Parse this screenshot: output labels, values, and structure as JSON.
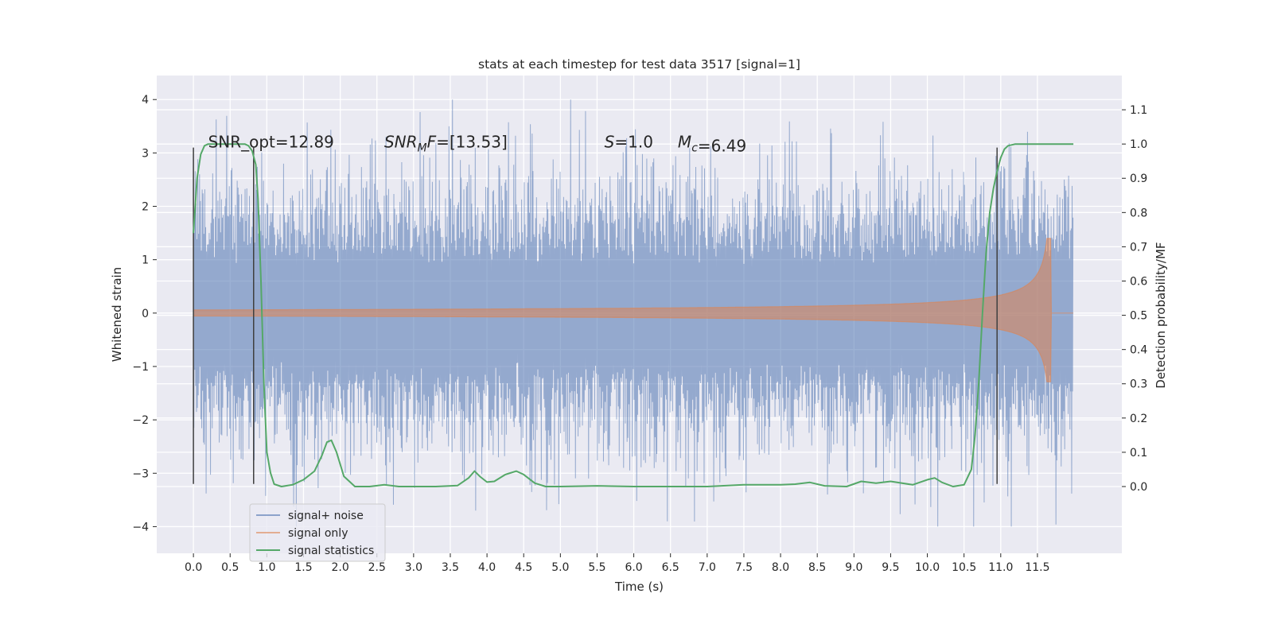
{
  "chart_data": {
    "type": "line",
    "title": "stats at each timestep for test data 3517 [signal=1]",
    "xlabel": "Time (s)",
    "ylabel": "Whitened strain",
    "y2label": "Detection probability/MF",
    "xlim": [
      -0.5,
      12.65
    ],
    "ylim": [
      -4.5,
      4.45
    ],
    "y2lim": [
      -0.195,
      1.2
    ],
    "xticks": [
      0.0,
      0.5,
      1.0,
      1.5,
      2.0,
      2.5,
      3.0,
      3.5,
      4.0,
      4.5,
      5.0,
      5.5,
      6.0,
      6.5,
      7.0,
      7.5,
      8.0,
      8.5,
      9.0,
      9.5,
      10.0,
      10.5,
      11.0,
      11.5
    ],
    "xtick_labels": [
      "0.0",
      "0.5",
      "1.0",
      "1.5",
      "2.0",
      "2.5",
      "3.0",
      "3.5",
      "4.0",
      "4.5",
      "5.0",
      "5.5",
      "6.0",
      "6.5",
      "7.0",
      "7.5",
      "8.0",
      "8.5",
      "9.0",
      "9.5",
      "10.0",
      "10.5",
      "11.0",
      "11.5"
    ],
    "yticks": [
      -4,
      -3,
      -2,
      -1,
      0,
      1,
      2,
      3,
      4
    ],
    "ytick_labels": [
      "−4",
      "−3",
      "−2",
      "−1",
      "0",
      "1",
      "2",
      "3",
      "4"
    ],
    "y2ticks": [
      0.0,
      0.1,
      0.2,
      0.3,
      0.4,
      0.5,
      0.6,
      0.7,
      0.8,
      0.9,
      1.0,
      1.1
    ],
    "y2tick_labels": [
      "0.0",
      "0.1",
      "0.2",
      "0.3",
      "0.4",
      "0.5",
      "0.6",
      "0.7",
      "0.8",
      "0.9",
      "1.0",
      "1.1"
    ],
    "grid": true,
    "legend_position": "lower-left",
    "annotations": [
      {
        "prefix": "SNR_opt",
        "text": "=12.89",
        "x": 0.2
      },
      {
        "prefix": "SNR",
        "sub": "M",
        "suffix": "F",
        "text": "=[13.53]",
        "x": 2.6
      },
      {
        "prefix": "S",
        "text": "=1.0",
        "x": 5.6
      },
      {
        "prefix": "M",
        "sub": "c",
        "text": "=6.49",
        "x": 6.6
      }
    ],
    "annotation_y": 3.1,
    "window_markers": [
      {
        "x": 0.0,
        "ymin": -3.2,
        "ymax": 3.1
      },
      {
        "x": 0.82,
        "ymin": -3.2,
        "ymax": 3.1
      },
      {
        "x": 10.95,
        "ymin": -3.2,
        "ymax": 3.1
      }
    ],
    "series": [
      {
        "name": "signal+ noise",
        "kind": "noise",
        "color": "#4c72b0",
        "x_range": [
          0.0,
          11.99
        ],
        "sigma": 0.85
      },
      {
        "name": "signal only",
        "kind": "chirp",
        "color": "#dd8452",
        "x_range": [
          0.0,
          11.99
        ],
        "merger_x": 11.68,
        "peak_amplitude": 1.4
      },
      {
        "name": "signal statistics",
        "kind": "line",
        "axis": "right",
        "color": "#55a868",
        "x": [
          0.0,
          0.05,
          0.1,
          0.15,
          0.2,
          0.3,
          0.5,
          0.7,
          0.75,
          0.8,
          0.85,
          0.88,
          0.92,
          0.96,
          1.0,
          1.05,
          1.1,
          1.2,
          1.35,
          1.5,
          1.65,
          1.75,
          1.82,
          1.88,
          1.95,
          2.05,
          2.2,
          2.4,
          2.6,
          2.8,
          3.0,
          3.3,
          3.6,
          3.75,
          3.83,
          3.9,
          4.0,
          4.1,
          4.25,
          4.4,
          4.5,
          4.65,
          4.8,
          5.0,
          5.5,
          6.0,
          6.5,
          7.0,
          7.5,
          8.0,
          8.2,
          8.4,
          8.6,
          8.9,
          9.1,
          9.3,
          9.5,
          9.8,
          10.0,
          10.1,
          10.2,
          10.35,
          10.5,
          10.6,
          10.65,
          10.7,
          10.75,
          10.8,
          10.85,
          10.9,
          10.95,
          11.0,
          11.05,
          11.1,
          11.2,
          11.4,
          11.6,
          11.8,
          11.99
        ],
        "y": [
          0.74,
          0.9,
          0.97,
          0.995,
          1.0,
          1.0,
          1.0,
          1.0,
          0.995,
          0.98,
          0.94,
          0.84,
          0.6,
          0.3,
          0.1,
          0.04,
          0.007,
          0.0,
          0.005,
          0.02,
          0.045,
          0.09,
          0.13,
          0.135,
          0.1,
          0.03,
          0.0,
          0.0,
          0.005,
          0.0,
          0.0,
          0.0,
          0.003,
          0.025,
          0.045,
          0.03,
          0.013,
          0.015,
          0.035,
          0.045,
          0.035,
          0.01,
          0.0,
          0.0,
          0.002,
          0.0,
          0.0,
          0.0,
          0.005,
          0.005,
          0.007,
          0.012,
          0.002,
          0.0,
          0.015,
          0.01,
          0.015,
          0.005,
          0.02,
          0.025,
          0.012,
          0.0,
          0.005,
          0.05,
          0.15,
          0.3,
          0.5,
          0.68,
          0.8,
          0.87,
          0.92,
          0.96,
          0.985,
          0.995,
          1.0,
          1.0,
          1.0,
          1.0,
          1.0
        ]
      }
    ]
  }
}
